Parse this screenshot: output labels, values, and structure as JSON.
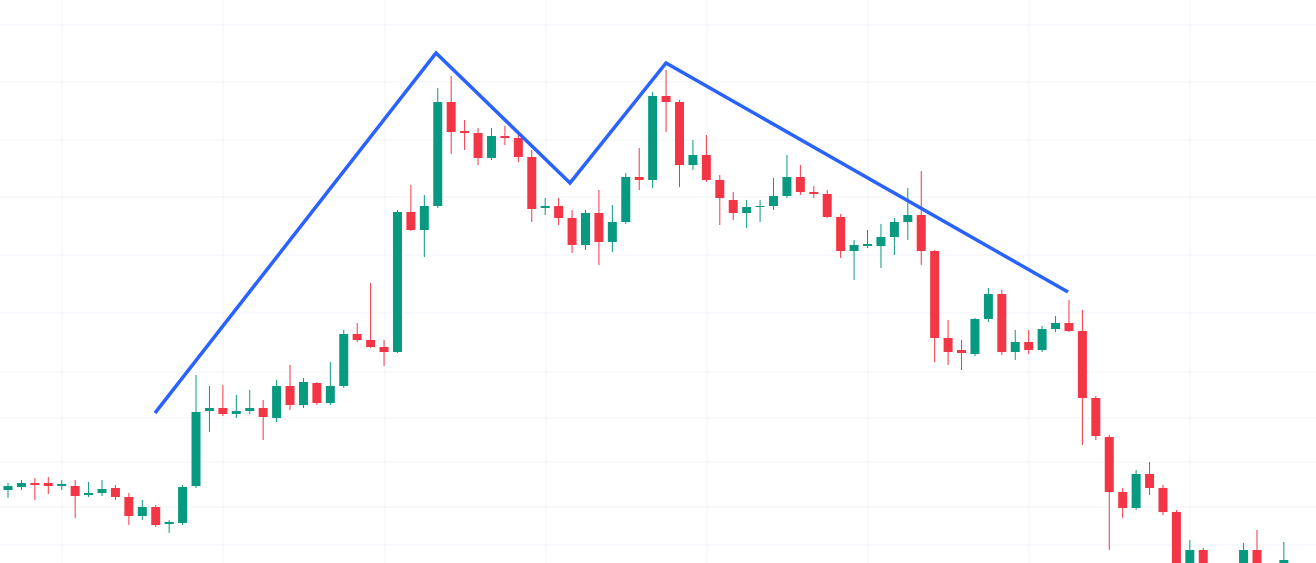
{
  "chart_data": {
    "type": "candlestick",
    "ylim": [
      0,
      563
    ],
    "up_color": "#089981",
    "down_color": "#f23645",
    "grid": true,
    "open": [
      73,
      76,
      80,
      80,
      77,
      77,
      68,
      70,
      75,
      66,
      47,
      56,
      39,
      40,
      77,
      152,
      155,
      149,
      152,
      155,
      145,
      177,
      158,
      180,
      160,
      177,
      229,
      223,
      216,
      211,
      351,
      333,
      357,
      461,
      432,
      430,
      405,
      427,
      425,
      406,
      355,
      357,
      345,
      318,
      350,
      321,
      341,
      386,
      383,
      467,
      461,
      398,
      408,
      383,
      363,
      350,
      356,
      357,
      367,
      386,
      371,
      369,
      346,
      312,
      317,
      317,
      326,
      341,
      348,
      312,
      225,
      213,
      209,
      244,
      269,
      211,
      221,
      213,
      234,
      240,
      232,
      165,
      126,
      71,
      55,
      89,
      75,
      51,
      0,
      13,
      null,
      null,
      0,
      13,
      null,
      0
    ],
    "high": [
      80,
      83,
      85,
      86,
      83,
      83,
      81,
      83,
      78,
      70,
      63,
      58,
      43,
      78,
      188,
      177,
      178,
      168,
      173,
      163,
      183,
      198,
      185,
      181,
      201,
      233,
      240,
      280,
      223,
      353,
      378,
      368,
      475,
      487,
      443,
      435,
      435,
      437,
      431,
      413,
      365,
      365,
      353,
      353,
      373,
      358,
      390,
      415,
      471,
      493,
      463,
      423,
      428,
      388,
      371,
      363,
      363,
      385,
      408,
      398,
      377,
      373,
      349,
      323,
      333,
      339,
      345,
      375,
      392,
      313,
      243,
      223,
      245,
      275,
      273,
      233,
      233,
      237,
      247,
      263,
      253,
      167,
      128,
      75,
      93,
      101,
      78,
      53,
      23,
      15,
      null,
      null,
      20,
      33,
      null,
      21
    ],
    "low": [
      65,
      73,
      63,
      69,
      73,
      45,
      66,
      67,
      63,
      38,
      43,
      36,
      30,
      38,
      75,
      131,
      147,
      145,
      149,
      123,
      141,
      153,
      155,
      158,
      158,
      175,
      221,
      215,
      197,
      210,
      332,
      306,
      355,
      409,
      413,
      398,
      403,
      418,
      401,
      341,
      348,
      338,
      310,
      313,
      298,
      311,
      339,
      373,
      375,
      431,
      376,
      393,
      381,
      338,
      343,
      335,
      341,
      353,
      365,
      368,
      365,
      345,
      305,
      283,
      315,
      295,
      308,
      323,
      298,
      201,
      198,
      193,
      207,
      241,
      208,
      203,
      209,
      211,
      231,
      231,
      118,
      123,
      13,
      45,
      53,
      68,
      48,
      0,
      0,
      0,
      null,
      null,
      0,
      0,
      null,
      0
    ],
    "close": [
      77,
      80,
      78,
      77,
      79,
      67,
      70,
      74,
      66,
      47,
      56,
      38,
      41,
      76,
      151,
      155,
      149,
      152,
      155,
      146,
      177,
      158,
      181,
      160,
      177,
      229,
      223,
      216,
      211,
      351,
      333,
      357,
      461,
      431,
      430,
      405,
      427,
      425,
      406,
      354,
      357,
      345,
      318,
      350,
      321,
      341,
      386,
      383,
      467,
      461,
      398,
      408,
      383,
      365,
      350,
      356,
      357,
      367,
      386,
      371,
      369,
      346,
      312,
      318,
      319,
      326,
      341,
      348,
      312,
      225,
      211,
      210,
      244,
      269,
      211,
      221,
      213,
      234,
      240,
      232,
      165,
      127,
      71,
      55,
      89,
      75,
      51,
      0,
      13,
      0,
      null,
      null,
      13,
      0,
      null,
      3
    ]
  }
}
